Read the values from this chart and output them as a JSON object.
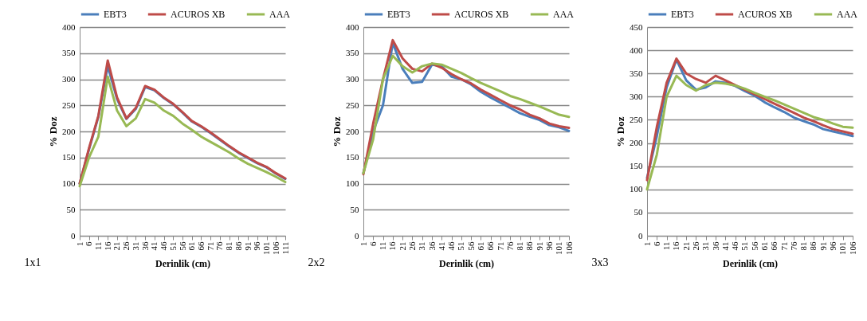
{
  "chart_data": [
    {
      "type": "line",
      "xlabel": "Derinlik (cm)",
      "ylabel": "% Doz",
      "annotations": [
        "1x1"
      ],
      "ylim": [
        0,
        400
      ],
      "yticks": [
        0,
        50,
        100,
        150,
        200,
        250,
        300,
        350,
        400
      ],
      "grid": "y",
      "legend": "top",
      "line_style": "solid",
      "marker": "none",
      "categories": [
        "1",
        "6",
        "11",
        "16",
        "21",
        "26",
        "31",
        "36",
        "41",
        "46",
        "51",
        "56",
        "61",
        "66",
        "71",
        "76",
        "81",
        "86",
        "91",
        "96",
        "101",
        "106",
        "111"
      ],
      "series": [
        {
          "name": "EBT3",
          "color": "#4a7ebb",
          "values": [
            100,
            166,
            228,
            325,
            262,
            224,
            243,
            285,
            279,
            264,
            252,
            236,
            219,
            209,
            197,
            184,
            171,
            159,
            149,
            139,
            131,
            119,
            109
          ]
        },
        {
          "name": "ACUROS XB",
          "color": "#be4b48",
          "values": [
            100,
            168,
            230,
            336,
            265,
            225,
            245,
            287,
            280,
            265,
            253,
            237,
            220,
            210,
            198,
            185,
            172,
            160,
            150,
            140,
            132,
            120,
            110
          ]
        },
        {
          "name": "AAA",
          "color": "#98b954",
          "values": [
            95,
            150,
            190,
            305,
            240,
            210,
            225,
            262,
            255,
            240,
            230,
            215,
            203,
            190,
            180,
            170,
            160,
            148,
            138,
            130,
            122,
            113,
            103
          ]
        }
      ]
    },
    {
      "type": "line",
      "xlabel": "Derinlik (cm)",
      "ylabel": "% Doz",
      "annotations": [
        "2x2"
      ],
      "ylim": [
        0,
        400
      ],
      "yticks": [
        0,
        50,
        100,
        150,
        200,
        250,
        300,
        350,
        400
      ],
      "grid": "y",
      "legend": "top",
      "line_style": "solid",
      "marker": "none",
      "categories": [
        "1",
        "6",
        "11",
        "16",
        "21",
        "26",
        "31",
        "36",
        "41",
        "46",
        "51",
        "56",
        "61",
        "66",
        "71",
        "76",
        "81",
        "86",
        "91",
        "96",
        "101",
        "106"
      ],
      "series": [
        {
          "name": "EBT3",
          "color": "#4a7ebb",
          "values": [
            120,
            200,
            250,
            370,
            320,
            293,
            295,
            328,
            325,
            305,
            300,
            290,
            276,
            265,
            255,
            245,
            235,
            228,
            222,
            212,
            208,
            201
          ]
        },
        {
          "name": "ACUROS XB",
          "color": "#be4b48",
          "values": [
            118,
            215,
            300,
            375,
            340,
            320,
            315,
            330,
            322,
            310,
            300,
            292,
            280,
            270,
            260,
            250,
            242,
            232,
            225,
            215,
            210,
            207
          ]
        },
        {
          "name": "AAA",
          "color": "#98b954",
          "values": [
            120,
            185,
            300,
            345,
            325,
            313,
            325,
            330,
            328,
            320,
            312,
            302,
            293,
            285,
            277,
            268,
            262,
            255,
            248,
            240,
            232,
            228
          ]
        }
      ]
    },
    {
      "type": "line",
      "xlabel": "Derinlik (cm)",
      "ylabel": "% Doz",
      "annotations": [
        "3x3"
      ],
      "ylim": [
        0,
        450
      ],
      "yticks": [
        0,
        50,
        100,
        150,
        200,
        250,
        300,
        350,
        400,
        450
      ],
      "grid": "y",
      "legend": "top",
      "line_style": "solid",
      "marker": "none",
      "categories": [
        "1",
        "6",
        "11",
        "16",
        "21",
        "26",
        "31",
        "36",
        "41",
        "46",
        "51",
        "56",
        "61",
        "66",
        "71",
        "76",
        "81",
        "86",
        "91",
        "96",
        "101",
        "106"
      ],
      "series": [
        {
          "name": "EBT3",
          "color": "#4a7ebb",
          "values": [
            125,
            215,
            320,
            380,
            335,
            315,
            320,
            333,
            330,
            323,
            312,
            302,
            288,
            277,
            267,
            255,
            247,
            240,
            230,
            225,
            220,
            215
          ]
        },
        {
          "name": "ACUROS XB",
          "color": "#be4b48",
          "values": [
            120,
            235,
            330,
            382,
            350,
            338,
            330,
            345,
            335,
            325,
            315,
            305,
            295,
            285,
            275,
            265,
            255,
            247,
            238,
            230,
            225,
            220
          ]
        },
        {
          "name": "AAA",
          "color": "#98b954",
          "values": [
            100,
            175,
            300,
            345,
            325,
            313,
            325,
            330,
            328,
            324,
            317,
            308,
            300,
            292,
            283,
            274,
            265,
            256,
            250,
            242,
            235,
            233
          ]
        }
      ]
    }
  ]
}
